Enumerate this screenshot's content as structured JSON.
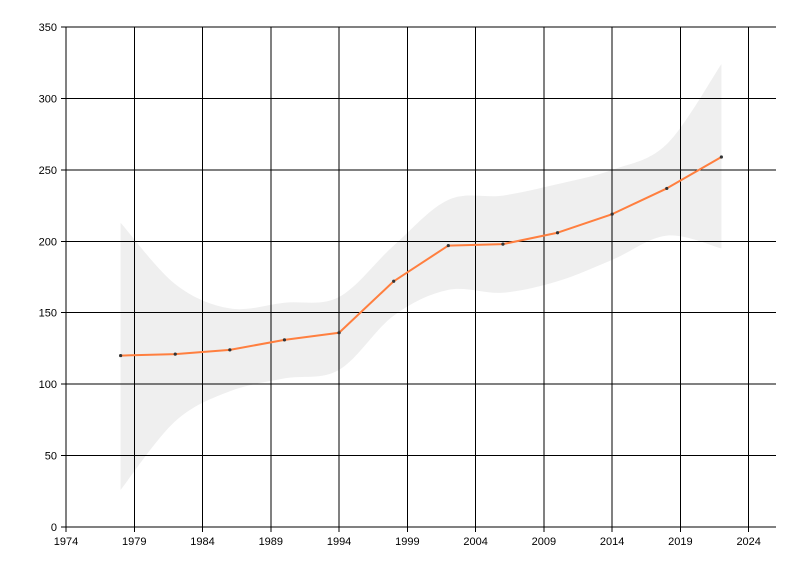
{
  "chart_data": {
    "type": "line",
    "title": "",
    "xlabel": "",
    "ylabel": "",
    "xlim": [
      1974,
      2026
    ],
    "ylim": [
      0,
      350
    ],
    "x_ticks": [
      1974,
      1979,
      1984,
      1989,
      1994,
      1999,
      2004,
      2009,
      2014,
      2019,
      2024
    ],
    "y_ticks": [
      0,
      50,
      100,
      150,
      200,
      250,
      300,
      350
    ],
    "grid": true,
    "legend": "none",
    "colors": {
      "line": "#ff7f3f",
      "band": "#efefef",
      "grid": "#000000",
      "marker": "#333333"
    },
    "series": [
      {
        "values": [
          {
            "x": 1978,
            "y": 120
          },
          {
            "x": 1982,
            "y": 121
          },
          {
            "x": 1986,
            "y": 124
          },
          {
            "x": 1990,
            "y": 131
          },
          {
            "x": 1994,
            "y": 136
          },
          {
            "x": 1998,
            "y": 172
          },
          {
            "x": 2002,
            "y": 197
          },
          {
            "x": 2006,
            "y": 198
          },
          {
            "x": 2010,
            "y": 206
          },
          {
            "x": 2014,
            "y": 219
          },
          {
            "x": 2018,
            "y": 237
          },
          {
            "x": 2022,
            "y": 259
          }
        ]
      }
    ],
    "confidence_band": {
      "upper": [
        {
          "x": 1978,
          "y": 213
        },
        {
          "x": 1982,
          "y": 170
        },
        {
          "x": 1986,
          "y": 153
        },
        {
          "x": 1990,
          "y": 157
        },
        {
          "x": 1994,
          "y": 161
        },
        {
          "x": 1998,
          "y": 197
        },
        {
          "x": 2002,
          "y": 229
        },
        {
          "x": 2006,
          "y": 232
        },
        {
          "x": 2010,
          "y": 240
        },
        {
          "x": 2014,
          "y": 250
        },
        {
          "x": 2018,
          "y": 268
        },
        {
          "x": 2022,
          "y": 324
        }
      ],
      "lower": [
        {
          "x": 1978,
          "y": 26
        },
        {
          "x": 1982,
          "y": 74
        },
        {
          "x": 1986,
          "y": 95
        },
        {
          "x": 1990,
          "y": 104
        },
        {
          "x": 1994,
          "y": 110
        },
        {
          "x": 1998,
          "y": 148
        },
        {
          "x": 2002,
          "y": 166
        },
        {
          "x": 2006,
          "y": 164
        },
        {
          "x": 2010,
          "y": 172
        },
        {
          "x": 2014,
          "y": 187
        },
        {
          "x": 2018,
          "y": 204
        },
        {
          "x": 2022,
          "y": 195
        }
      ]
    }
  }
}
